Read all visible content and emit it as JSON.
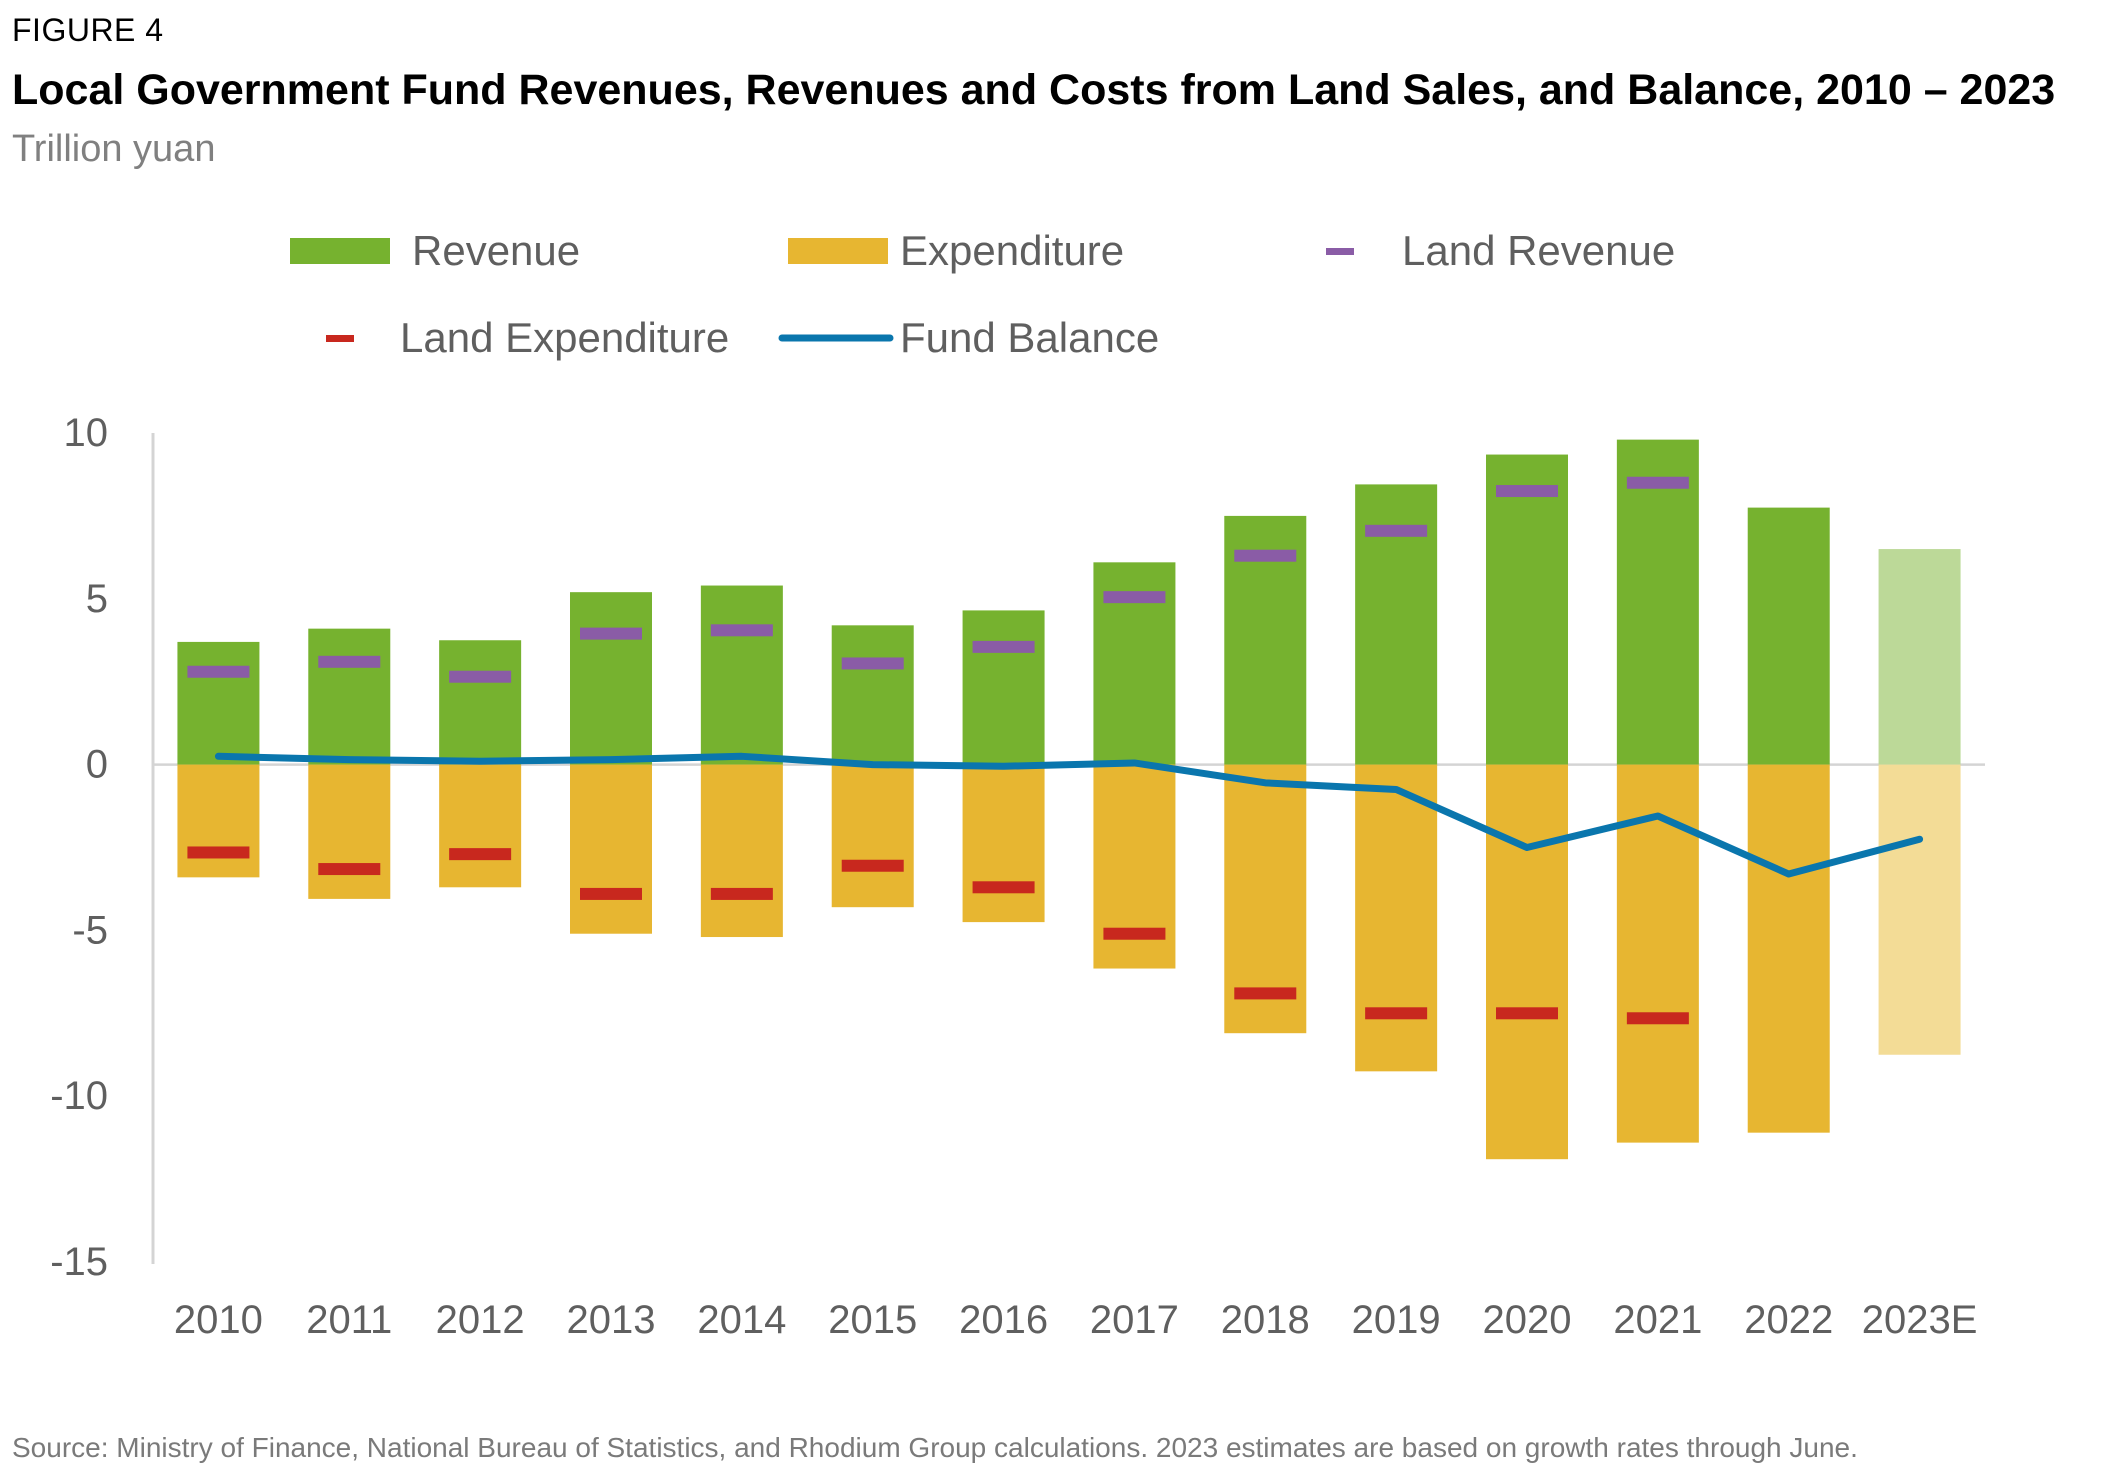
{
  "figure_label": "FIGURE 4",
  "source": "Source: Ministry of Finance, National Bureau of Statistics, and Rhodium Group calculations. 2023 estimates are based on growth rates through June.",
  "colors": {
    "revenue": "#76b22f",
    "revenue_estimate": "#bcd998",
    "expenditure": "#e7b631",
    "expenditure_estimate": "#f3dc96",
    "land_revenue": "#8a5ca6",
    "land_expenditure": "#c8281e",
    "fund_balance": "#0a76ad",
    "axis": "#d4d4d4",
    "tick_text": "#5f5f5f"
  },
  "chart_data": {
    "type": "bar",
    "title": "Local Government Fund Revenues, Revenues and Costs from Land Sales, and Balance, 2010 – 2023",
    "subtitle": "Trillion yuan",
    "xlabel": "",
    "ylabel": "",
    "ylim": [
      -15,
      10
    ],
    "yticks": [
      10,
      5,
      0,
      -5,
      -10,
      -15
    ],
    "ytick_labels": [
      "10",
      "5",
      "0",
      "-5",
      "-10",
      "-15"
    ],
    "grid": false,
    "legend_position": "top",
    "categories": [
      "2010",
      "2011",
      "2012",
      "2013",
      "2014",
      "2015",
      "2016",
      "2017",
      "2018",
      "2019",
      "2020",
      "2021",
      "2022",
      "2023E"
    ],
    "estimate_categories": [
      "2023E"
    ],
    "series": [
      {
        "name": "Revenue",
        "kind": "bar",
        "values": [
          3.7,
          4.1,
          3.75,
          5.2,
          5.4,
          4.2,
          4.65,
          6.1,
          7.5,
          8.45,
          9.35,
          9.8,
          7.75,
          6.5
        ]
      },
      {
        "name": "Expenditure",
        "kind": "bar",
        "values": [
          -3.4,
          -4.05,
          -3.7,
          -5.1,
          -5.2,
          -4.3,
          -4.75,
          -6.15,
          -8.1,
          -9.25,
          -11.9,
          -11.4,
          -11.1,
          -8.75
        ]
      },
      {
        "name": "Land Revenue",
        "kind": "marker",
        "values": [
          2.8,
          3.1,
          2.65,
          3.95,
          4.05,
          3.05,
          3.55,
          5.05,
          6.3,
          7.05,
          8.25,
          8.5,
          null,
          null
        ]
      },
      {
        "name": "Land Expenditure",
        "kind": "marker",
        "values": [
          -2.65,
          -3.15,
          -2.7,
          -3.9,
          -3.9,
          -3.05,
          -3.7,
          -5.1,
          -6.9,
          -7.5,
          -7.5,
          -7.65,
          null,
          null
        ]
      },
      {
        "name": "Fund Balance",
        "kind": "line",
        "values": [
          0.25,
          0.15,
          0.1,
          0.15,
          0.25,
          0.0,
          -0.05,
          0.05,
          -0.55,
          -0.75,
          -2.5,
          -1.55,
          -3.3,
          -2.25
        ]
      }
    ]
  }
}
